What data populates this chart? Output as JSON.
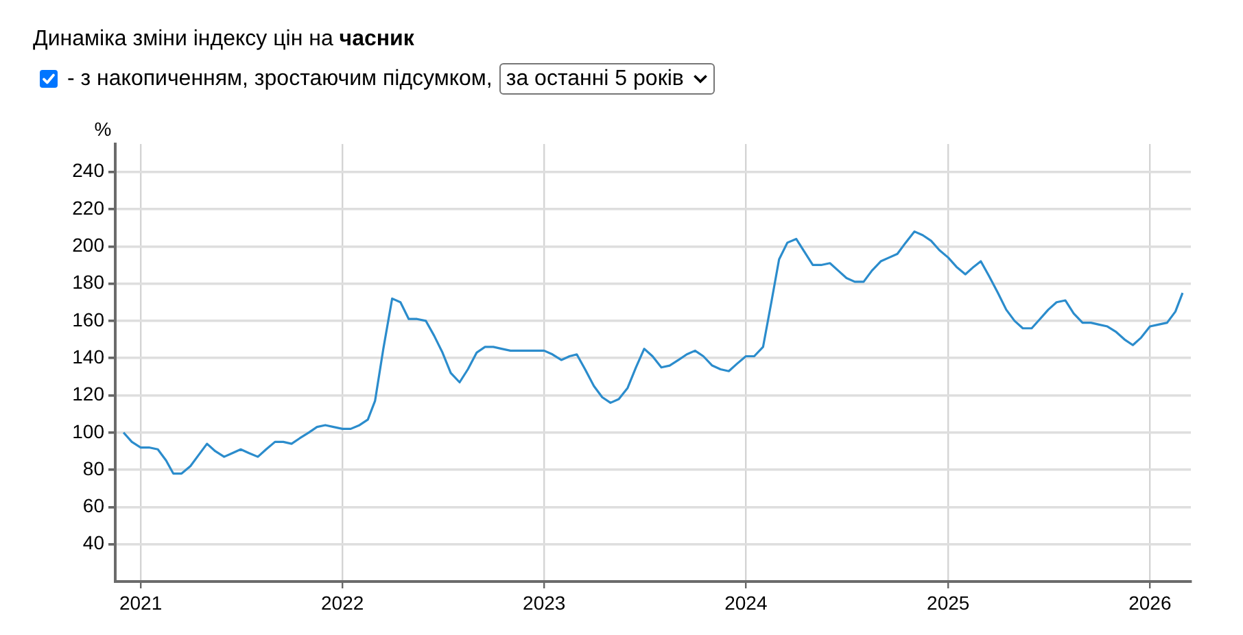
{
  "chart_data": {
    "type": "line",
    "title": "Динаміка зміни індексу цін на часник",
    "subtitle": "- з накопиченням, зростаючим підсумком,",
    "annotations": [
      "за останні 5 років"
    ],
    "ylabel": "%",
    "x": [
      "2020-12-01",
      "2020-12-16",
      "2021-01-01",
      "2021-01-16",
      "2021-02-01",
      "2021-02-16",
      "2021-03-01",
      "2021-03-16",
      "2021-04-01",
      "2021-04-16",
      "2021-05-01",
      "2021-05-16",
      "2021-06-01",
      "2021-06-16",
      "2021-07-01",
      "2021-07-16",
      "2021-08-01",
      "2021-08-16",
      "2021-09-01",
      "2021-09-16",
      "2021-10-01",
      "2021-10-16",
      "2021-11-01",
      "2021-11-16",
      "2021-12-01",
      "2021-12-16",
      "2022-01-01",
      "2022-01-16",
      "2022-02-01",
      "2022-02-16",
      "2022-03-01",
      "2022-03-16",
      "2022-04-01",
      "2022-04-16",
      "2022-05-01",
      "2022-05-16",
      "2022-06-01",
      "2022-06-16",
      "2022-07-01",
      "2022-07-16",
      "2022-08-01",
      "2022-08-16",
      "2022-09-01",
      "2022-09-16",
      "2022-10-01",
      "2022-10-16",
      "2022-11-01",
      "2022-11-16",
      "2022-12-01",
      "2022-12-16",
      "2023-01-01",
      "2023-01-16",
      "2023-02-01",
      "2023-02-16",
      "2023-03-01",
      "2023-03-16",
      "2023-04-01",
      "2023-04-16",
      "2023-05-01",
      "2023-05-16",
      "2023-06-01",
      "2023-06-16",
      "2023-07-01",
      "2023-07-16",
      "2023-08-01",
      "2023-08-16",
      "2023-09-01",
      "2023-09-16",
      "2023-10-01",
      "2023-10-16",
      "2023-11-01",
      "2023-11-16",
      "2023-12-01",
      "2023-12-16",
      "2024-01-01",
      "2024-01-16",
      "2024-02-01",
      "2024-02-16",
      "2024-03-01",
      "2024-03-16",
      "2024-04-01",
      "2024-04-16",
      "2024-05-01",
      "2024-05-16",
      "2024-06-01",
      "2024-06-16",
      "2024-07-01",
      "2024-07-16",
      "2024-08-01",
      "2024-08-16",
      "2024-09-01",
      "2024-09-16",
      "2024-10-01",
      "2024-10-16",
      "2024-11-01",
      "2024-11-16",
      "2024-12-01",
      "2024-12-16",
      "2025-01-01",
      "2025-01-16",
      "2025-02-01",
      "2025-02-16",
      "2025-03-01",
      "2025-03-16",
      "2025-04-01",
      "2025-04-16",
      "2025-05-01",
      "2025-05-16",
      "2025-06-01",
      "2025-06-16",
      "2025-07-01",
      "2025-07-16",
      "2025-08-01",
      "2025-08-16",
      "2025-09-01",
      "2025-09-16",
      "2025-10-01",
      "2025-10-16",
      "2025-11-01",
      "2025-11-16",
      "2025-12-01",
      "2025-12-16",
      "2026-01-01",
      "2026-01-16",
      "2026-02-01",
      "2026-02-16",
      "2026-03-01"
    ],
    "series": [
      {
        "color": "#2b8ccc",
        "values": [
          100,
          95,
          92,
          92,
          91,
          85,
          78,
          78,
          82,
          88,
          94,
          90,
          87,
          89,
          91,
          89,
          87,
          91,
          95,
          95,
          94,
          97,
          100,
          103,
          104,
          103,
          102,
          102,
          104,
          107,
          117,
          145,
          172,
          170,
          161,
          161,
          160,
          152,
          143,
          132,
          127,
          134,
          143,
          146,
          146,
          145,
          144,
          144,
          144,
          144,
          144,
          142,
          139,
          141,
          142,
          134,
          125,
          119,
          116,
          118,
          124,
          135,
          145,
          141,
          135,
          136,
          139,
          142,
          144,
          141,
          136,
          134,
          133,
          137,
          141,
          141,
          146,
          170,
          193,
          202,
          204,
          197,
          190,
          190,
          191,
          187,
          183,
          181,
          181,
          187,
          192,
          194,
          196,
          202,
          208,
          206,
          203,
          198,
          194,
          189,
          185,
          189,
          192,
          184,
          175,
          166,
          160,
          156,
          156,
          161,
          166,
          170,
          171,
          164,
          159,
          159,
          158,
          157,
          154,
          150,
          147,
          151,
          157,
          158,
          159,
          165,
          175
        ]
      }
    ],
    "xlim": [
      "2020-11-16",
      "2026-03-16"
    ],
    "ylim": [
      20,
      255
    ],
    "xticks": [
      "2021",
      "2022",
      "2023",
      "2024",
      "2025",
      "2026"
    ],
    "yticks": [
      40,
      60,
      80,
      100,
      120,
      140,
      160,
      180,
      200,
      220,
      240
    ],
    "grid": true,
    "legend": false,
    "marker": "none"
  }
}
